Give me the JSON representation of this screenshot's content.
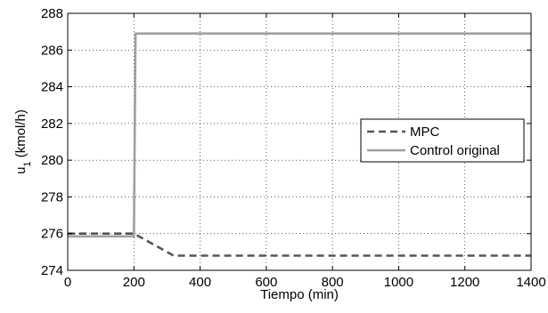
{
  "chart_data": {
    "type": "line",
    "xlabel": "Tiempo (min)",
    "ylabel": {
      "main": "u",
      "sub": "1",
      "rest": " (kmol/h)"
    },
    "xlim": [
      0,
      1400
    ],
    "ylim": [
      274,
      288
    ],
    "xticks": [
      0,
      200,
      400,
      600,
      800,
      1000,
      1200,
      1400
    ],
    "yticks": [
      274,
      276,
      278,
      280,
      282,
      284,
      286,
      288
    ],
    "grid": true,
    "legend_position": "right",
    "series": [
      {
        "name": "MPC",
        "style": "dashed",
        "color": "#555555",
        "x": [
          0,
          200,
          320,
          1400
        ],
        "y": [
          276.0,
          276.0,
          274.8,
          274.8
        ]
      },
      {
        "name": "Control original",
        "style": "solid",
        "color": "#a0a0a0",
        "x": [
          0,
          200,
          205,
          1400
        ],
        "y": [
          275.85,
          275.85,
          286.9,
          286.9
        ]
      }
    ]
  }
}
